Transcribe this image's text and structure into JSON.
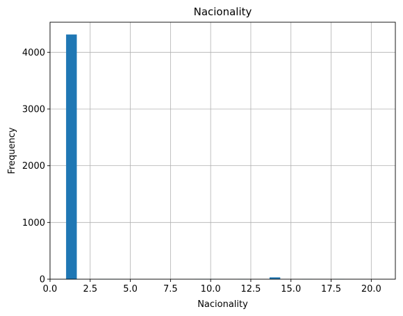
{
  "chart_data": {
    "type": "bar",
    "title": "Nacionality",
    "xlabel": "Nacionality",
    "ylabel": "Frequency",
    "xlim": [
      0,
      21.5
    ],
    "ylim": [
      0,
      4530
    ],
    "grid": true,
    "bar_color": "#1f77b4",
    "xticks": [
      {
        "value": 0,
        "label": "0.0"
      },
      {
        "value": 2.5,
        "label": "2.5"
      },
      {
        "value": 5,
        "label": "5.0"
      },
      {
        "value": 7.5,
        "label": "7.5"
      },
      {
        "value": 10,
        "label": "10.0"
      },
      {
        "value": 12.5,
        "label": "12.5"
      },
      {
        "value": 15,
        "label": "15.0"
      },
      {
        "value": 17.5,
        "label": "17.5"
      },
      {
        "value": 20,
        "label": "20.0"
      }
    ],
    "yticks": [
      {
        "value": 0,
        "label": "0"
      },
      {
        "value": 1000,
        "label": "1000"
      },
      {
        "value": 2000,
        "label": "2000"
      },
      {
        "value": 3000,
        "label": "3000"
      },
      {
        "value": 4000,
        "label": "4000"
      }
    ],
    "bins": [
      {
        "x0": 1.0,
        "x1": 1.6667,
        "count": 4314
      },
      {
        "x0": 3.0,
        "x1": 3.6667,
        "count": 3
      },
      {
        "x0": 3.6667,
        "x1": 4.3333,
        "count": 3
      },
      {
        "x0": 9.0,
        "x1": 9.6667,
        "count": 3
      },
      {
        "x0": 9.6667,
        "x1": 10.3333,
        "count": 3
      },
      {
        "x0": 11.6667,
        "x1": 12.3333,
        "count": 3
      },
      {
        "x0": 13.6667,
        "x1": 14.3333,
        "count": 32
      },
      {
        "x0": 15.6667,
        "x1": 16.3333,
        "count": 3
      },
      {
        "x0": 17.6667,
        "x1": 18.3333,
        "count": 3
      }
    ]
  }
}
